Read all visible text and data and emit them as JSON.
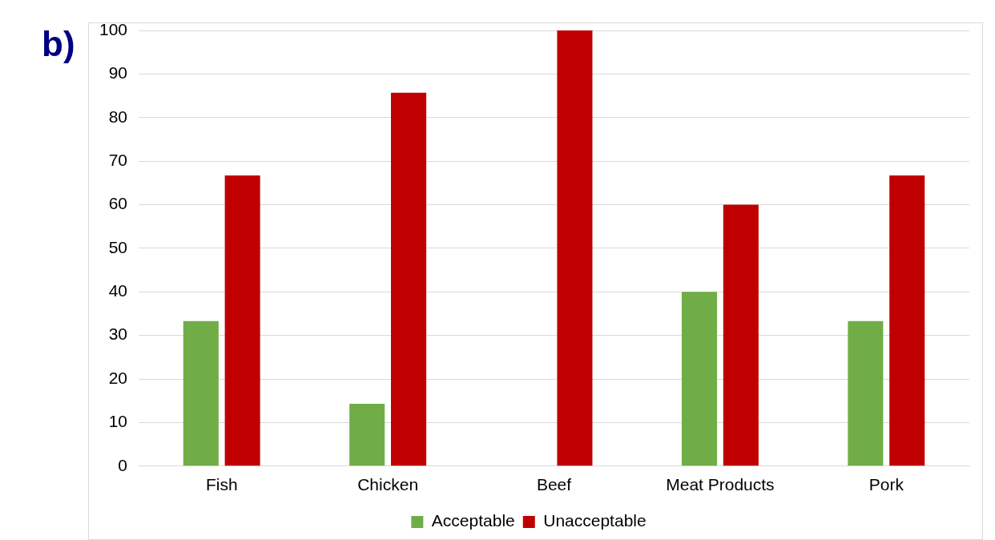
{
  "chart_data": {
    "type": "bar",
    "annotations": [
      "b)"
    ],
    "categories": [
      "Fish",
      "Chicken",
      "Beef",
      "Meat Products",
      "Pork"
    ],
    "series": [
      {
        "name": "Acceptable",
        "color": "#70ad47",
        "values": [
          33.3,
          14.3,
          0,
          40,
          33.3
        ]
      },
      {
        "name": "Unacceptable",
        "color": "#c00000",
        "values": [
          66.7,
          85.7,
          100,
          60,
          66.7
        ]
      }
    ],
    "ylim": [
      0,
      100
    ],
    "yticks": [
      0,
      10,
      20,
      30,
      40,
      50,
      60,
      70,
      80,
      90,
      100
    ],
    "grid": "y",
    "legend": "bottom"
  }
}
